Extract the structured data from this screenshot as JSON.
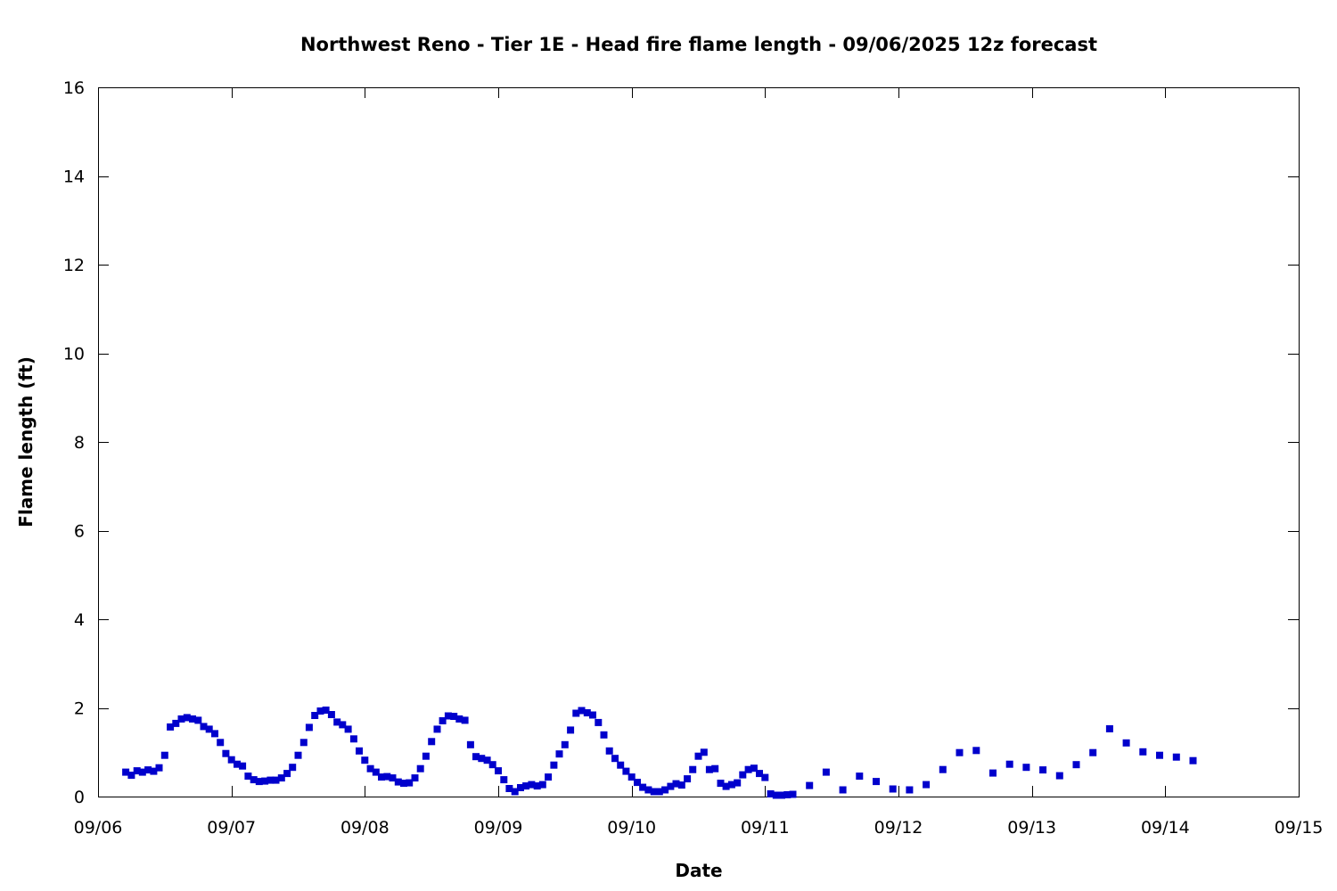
{
  "chart_data": {
    "type": "scatter",
    "title": "Northwest Reno - Tier 1E - Head fire flame length - 09/06/2025 12z forecast",
    "xlabel": "Date",
    "ylabel": "Flame length (ft)",
    "x_start": "09/06",
    "x_unit": "days",
    "xlim": [
      0,
      9
    ],
    "ylim": [
      0,
      16
    ],
    "x_ticks": [
      {
        "value": 0,
        "label": "09/06"
      },
      {
        "value": 1,
        "label": "09/07"
      },
      {
        "value": 2,
        "label": "09/08"
      },
      {
        "value": 3,
        "label": "09/09"
      },
      {
        "value": 4,
        "label": "09/10"
      },
      {
        "value": 5,
        "label": "09/11"
      },
      {
        "value": 6,
        "label": "09/12"
      },
      {
        "value": 7,
        "label": "09/13"
      },
      {
        "value": 8,
        "label": "09/14"
      },
      {
        "value": 9,
        "label": "09/15"
      }
    ],
    "y_ticks": [
      {
        "value": 0,
        "label": "0"
      },
      {
        "value": 2,
        "label": "2"
      },
      {
        "value": 4,
        "label": "4"
      },
      {
        "value": 6,
        "label": "6"
      },
      {
        "value": 8,
        "label": "8"
      },
      {
        "value": 10,
        "label": "10"
      },
      {
        "value": 12,
        "label": "12"
      },
      {
        "value": 14,
        "label": "14"
      },
      {
        "value": 16,
        "label": "16"
      }
    ],
    "grid": false,
    "marker_color": "#0000cc",
    "series": [
      {
        "name": "",
        "points": [
          [
            0.208,
            0.55
          ],
          [
            0.25,
            0.48
          ],
          [
            0.292,
            0.58
          ],
          [
            0.333,
            0.55
          ],
          [
            0.375,
            0.6
          ],
          [
            0.417,
            0.57
          ],
          [
            0.458,
            0.65
          ],
          [
            0.5,
            0.93
          ],
          [
            0.542,
            1.57
          ],
          [
            0.583,
            1.65
          ],
          [
            0.625,
            1.75
          ],
          [
            0.667,
            1.78
          ],
          [
            0.708,
            1.75
          ],
          [
            0.75,
            1.72
          ],
          [
            0.792,
            1.58
          ],
          [
            0.833,
            1.52
          ],
          [
            0.875,
            1.42
          ],
          [
            0.917,
            1.22
          ],
          [
            0.958,
            0.97
          ],
          [
            1.0,
            0.83
          ],
          [
            1.042,
            0.73
          ],
          [
            1.083,
            0.69
          ],
          [
            1.125,
            0.46
          ],
          [
            1.167,
            0.38
          ],
          [
            1.208,
            0.34
          ],
          [
            1.25,
            0.35
          ],
          [
            1.292,
            0.37
          ],
          [
            1.333,
            0.37
          ],
          [
            1.375,
            0.42
          ],
          [
            1.417,
            0.52
          ],
          [
            1.458,
            0.66
          ],
          [
            1.5,
            0.93
          ],
          [
            1.542,
            1.22
          ],
          [
            1.583,
            1.56
          ],
          [
            1.625,
            1.83
          ],
          [
            1.667,
            1.93
          ],
          [
            1.708,
            1.95
          ],
          [
            1.75,
            1.85
          ],
          [
            1.792,
            1.68
          ],
          [
            1.833,
            1.62
          ],
          [
            1.875,
            1.52
          ],
          [
            1.917,
            1.3
          ],
          [
            1.958,
            1.03
          ],
          [
            2.0,
            0.82
          ],
          [
            2.042,
            0.63
          ],
          [
            2.083,
            0.55
          ],
          [
            2.125,
            0.44
          ],
          [
            2.167,
            0.45
          ],
          [
            2.208,
            0.42
          ],
          [
            2.25,
            0.33
          ],
          [
            2.292,
            0.3
          ],
          [
            2.333,
            0.31
          ],
          [
            2.375,
            0.42
          ],
          [
            2.417,
            0.63
          ],
          [
            2.458,
            0.91
          ],
          [
            2.5,
            1.24
          ],
          [
            2.542,
            1.52
          ],
          [
            2.583,
            1.71
          ],
          [
            2.625,
            1.82
          ],
          [
            2.667,
            1.81
          ],
          [
            2.708,
            1.75
          ],
          [
            2.75,
            1.72
          ],
          [
            2.792,
            1.17
          ],
          [
            2.833,
            0.9
          ],
          [
            2.875,
            0.86
          ],
          [
            2.917,
            0.82
          ],
          [
            2.958,
            0.72
          ],
          [
            3.0,
            0.58
          ],
          [
            3.042,
            0.38
          ],
          [
            3.083,
            0.18
          ],
          [
            3.125,
            0.11
          ],
          [
            3.167,
            0.2
          ],
          [
            3.208,
            0.24
          ],
          [
            3.25,
            0.27
          ],
          [
            3.292,
            0.24
          ],
          [
            3.333,
            0.27
          ],
          [
            3.375,
            0.44
          ],
          [
            3.417,
            0.71
          ],
          [
            3.458,
            0.96
          ],
          [
            3.5,
            1.17
          ],
          [
            3.542,
            1.5
          ],
          [
            3.583,
            1.88
          ],
          [
            3.625,
            1.94
          ],
          [
            3.667,
            1.89
          ],
          [
            3.708,
            1.84
          ],
          [
            3.75,
            1.67
          ],
          [
            3.792,
            1.39
          ],
          [
            3.833,
            1.03
          ],
          [
            3.875,
            0.86
          ],
          [
            3.917,
            0.71
          ],
          [
            3.958,
            0.57
          ],
          [
            4.0,
            0.44
          ],
          [
            4.042,
            0.32
          ],
          [
            4.083,
            0.21
          ],
          [
            4.125,
            0.15
          ],
          [
            4.167,
            0.11
          ],
          [
            4.208,
            0.11
          ],
          [
            4.25,
            0.15
          ],
          [
            4.292,
            0.23
          ],
          [
            4.333,
            0.29
          ],
          [
            4.375,
            0.26
          ],
          [
            4.417,
            0.4
          ],
          [
            4.458,
            0.61
          ],
          [
            4.5,
            0.91
          ],
          [
            4.542,
            1.0
          ],
          [
            4.583,
            0.61
          ],
          [
            4.625,
            0.63
          ],
          [
            4.667,
            0.3
          ],
          [
            4.708,
            0.23
          ],
          [
            4.75,
            0.27
          ],
          [
            4.792,
            0.31
          ],
          [
            4.833,
            0.49
          ],
          [
            4.875,
            0.61
          ],
          [
            4.917,
            0.64
          ],
          [
            4.958,
            0.52
          ],
          [
            5.0,
            0.43
          ],
          [
            5.042,
            0.06
          ],
          [
            5.083,
            0.03
          ],
          [
            5.125,
            0.03
          ],
          [
            5.167,
            0.04
          ],
          [
            5.208,
            0.05
          ],
          [
            5.333,
            0.25
          ],
          [
            5.458,
            0.55
          ],
          [
            5.583,
            0.15
          ],
          [
            5.708,
            0.46
          ],
          [
            5.833,
            0.34
          ],
          [
            5.958,
            0.17
          ],
          [
            6.083,
            0.15
          ],
          [
            6.208,
            0.27
          ],
          [
            6.333,
            0.61
          ],
          [
            6.458,
            0.99
          ],
          [
            6.583,
            1.04
          ],
          [
            6.708,
            0.53
          ],
          [
            6.833,
            0.73
          ],
          [
            6.958,
            0.66
          ],
          [
            7.083,
            0.6
          ],
          [
            7.208,
            0.47
          ],
          [
            7.333,
            0.72
          ],
          [
            7.458,
            0.99
          ],
          [
            7.583,
            1.53
          ],
          [
            7.708,
            1.21
          ],
          [
            7.833,
            1.01
          ],
          [
            7.958,
            0.93
          ],
          [
            8.083,
            0.89
          ],
          [
            8.208,
            0.81
          ]
        ]
      }
    ]
  }
}
